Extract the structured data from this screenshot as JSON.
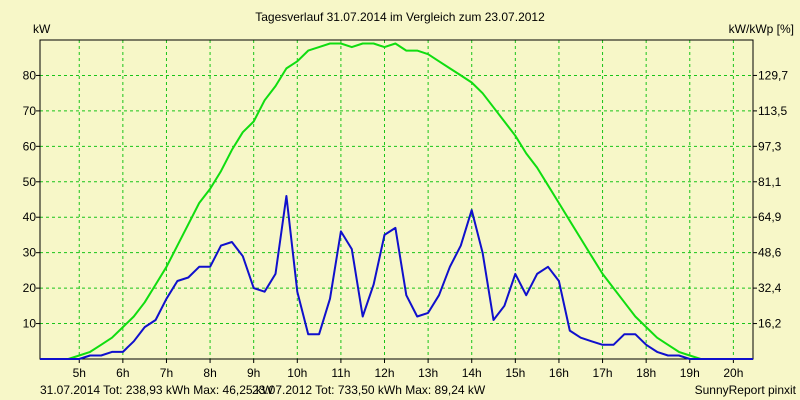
{
  "chart_data": {
    "type": "line",
    "title": "Tagesverlauf 31.07.2014 im Vergleich zum 23.07.2012",
    "ylabel_left": "kW",
    "ylabel_right": "kW/kWp [%]",
    "x_tick_labels": [
      "5h",
      "6h",
      "7h",
      "8h",
      "9h",
      "10h",
      "11h",
      "12h",
      "13h",
      "14h",
      "15h",
      "16h",
      "17h",
      "18h",
      "19h",
      "20h"
    ],
    "y_ticks_left": [
      10,
      20,
      30,
      40,
      50,
      60,
      70,
      80
    ],
    "y_tick_labels_right": [
      "16,2",
      "32,4",
      "48,6",
      "64,9",
      "81,1",
      "97,3",
      "113,5",
      "129,7"
    ],
    "xlim": [
      4.1,
      20.45
    ],
    "ylim": [
      0,
      90
    ],
    "grid": true,
    "legend_position": "bottom-left",
    "footer_right": "SunnyReport pinxit",
    "legend_entries": [
      {
        "text": "31.07.2014 Tot: 238,93 kWh Max: 46,25 kW",
        "color": "#1010cc"
      },
      {
        "text": "23.07.2012 Tot: 733,50 kWh Max: 89,24 kW",
        "color": "#10dd10"
      }
    ],
    "series": [
      {
        "color": "#1010cc",
        "x": [
          4.1,
          4.5,
          4.75,
          5.0,
          5.25,
          5.5,
          5.75,
          6.0,
          6.25,
          6.5,
          6.75,
          7.0,
          7.25,
          7.5,
          7.75,
          8.0,
          8.25,
          8.5,
          8.75,
          9.0,
          9.25,
          9.5,
          9.75,
          10.0,
          10.25,
          10.5,
          10.75,
          11.0,
          11.25,
          11.5,
          11.75,
          12.0,
          12.25,
          12.5,
          12.75,
          13.0,
          13.25,
          13.5,
          13.75,
          14.0,
          14.25,
          14.5,
          14.75,
          15.0,
          15.25,
          15.5,
          15.75,
          16.0,
          16.25,
          16.5,
          16.75,
          17.0,
          17.25,
          17.5,
          17.75,
          18.0,
          18.25,
          18.5,
          18.75,
          19.0,
          19.25,
          19.5,
          19.75,
          20.0,
          20.45
        ],
        "y": [
          0,
          0,
          0,
          0,
          1,
          1,
          2,
          2,
          5,
          9,
          11,
          17,
          22,
          23,
          26,
          26,
          32,
          33,
          29,
          20,
          19,
          24,
          46,
          19,
          7,
          7,
          17,
          36,
          31,
          12,
          21,
          35,
          37,
          18,
          12,
          13,
          18,
          26,
          32,
          42,
          30,
          11,
          15,
          24,
          18,
          24,
          26,
          22,
          8,
          6,
          5,
          4,
          4,
          7,
          7,
          4,
          2,
          1,
          1,
          0,
          0,
          0,
          0,
          0,
          0
        ]
      },
      {
        "color": "#10dd10",
        "x": [
          4.1,
          4.5,
          4.75,
          5.0,
          5.25,
          5.5,
          5.75,
          6.0,
          6.25,
          6.5,
          6.75,
          7.0,
          7.25,
          7.5,
          7.75,
          8.0,
          8.25,
          8.5,
          8.75,
          9.0,
          9.25,
          9.5,
          9.75,
          10.0,
          10.25,
          10.5,
          10.75,
          11.0,
          11.25,
          11.5,
          11.75,
          12.0,
          12.25,
          12.5,
          12.75,
          13.0,
          13.25,
          13.5,
          13.75,
          14.0,
          14.25,
          14.5,
          14.75,
          15.0,
          15.25,
          15.5,
          15.75,
          16.0,
          16.25,
          16.5,
          16.75,
          17.0,
          17.25,
          17.5,
          17.75,
          18.0,
          18.25,
          18.5,
          18.75,
          19.0,
          19.25,
          19.5,
          19.75,
          20.0,
          20.45
        ],
        "y": [
          0,
          0,
          0,
          1,
          2,
          4,
          6,
          9,
          12,
          16,
          21,
          26,
          32,
          38,
          44,
          48,
          53,
          59,
          64,
          67,
          73,
          77,
          82,
          84,
          87,
          88,
          89,
          89,
          88,
          89,
          89,
          88,
          89,
          87,
          87,
          86,
          84,
          82,
          80,
          78,
          75,
          71,
          67,
          63,
          58,
          54,
          49,
          44,
          39,
          34,
          29,
          24,
          20,
          16,
          12,
          9,
          6,
          4,
          2,
          1,
          0,
          0,
          0,
          0,
          0
        ]
      }
    ]
  }
}
